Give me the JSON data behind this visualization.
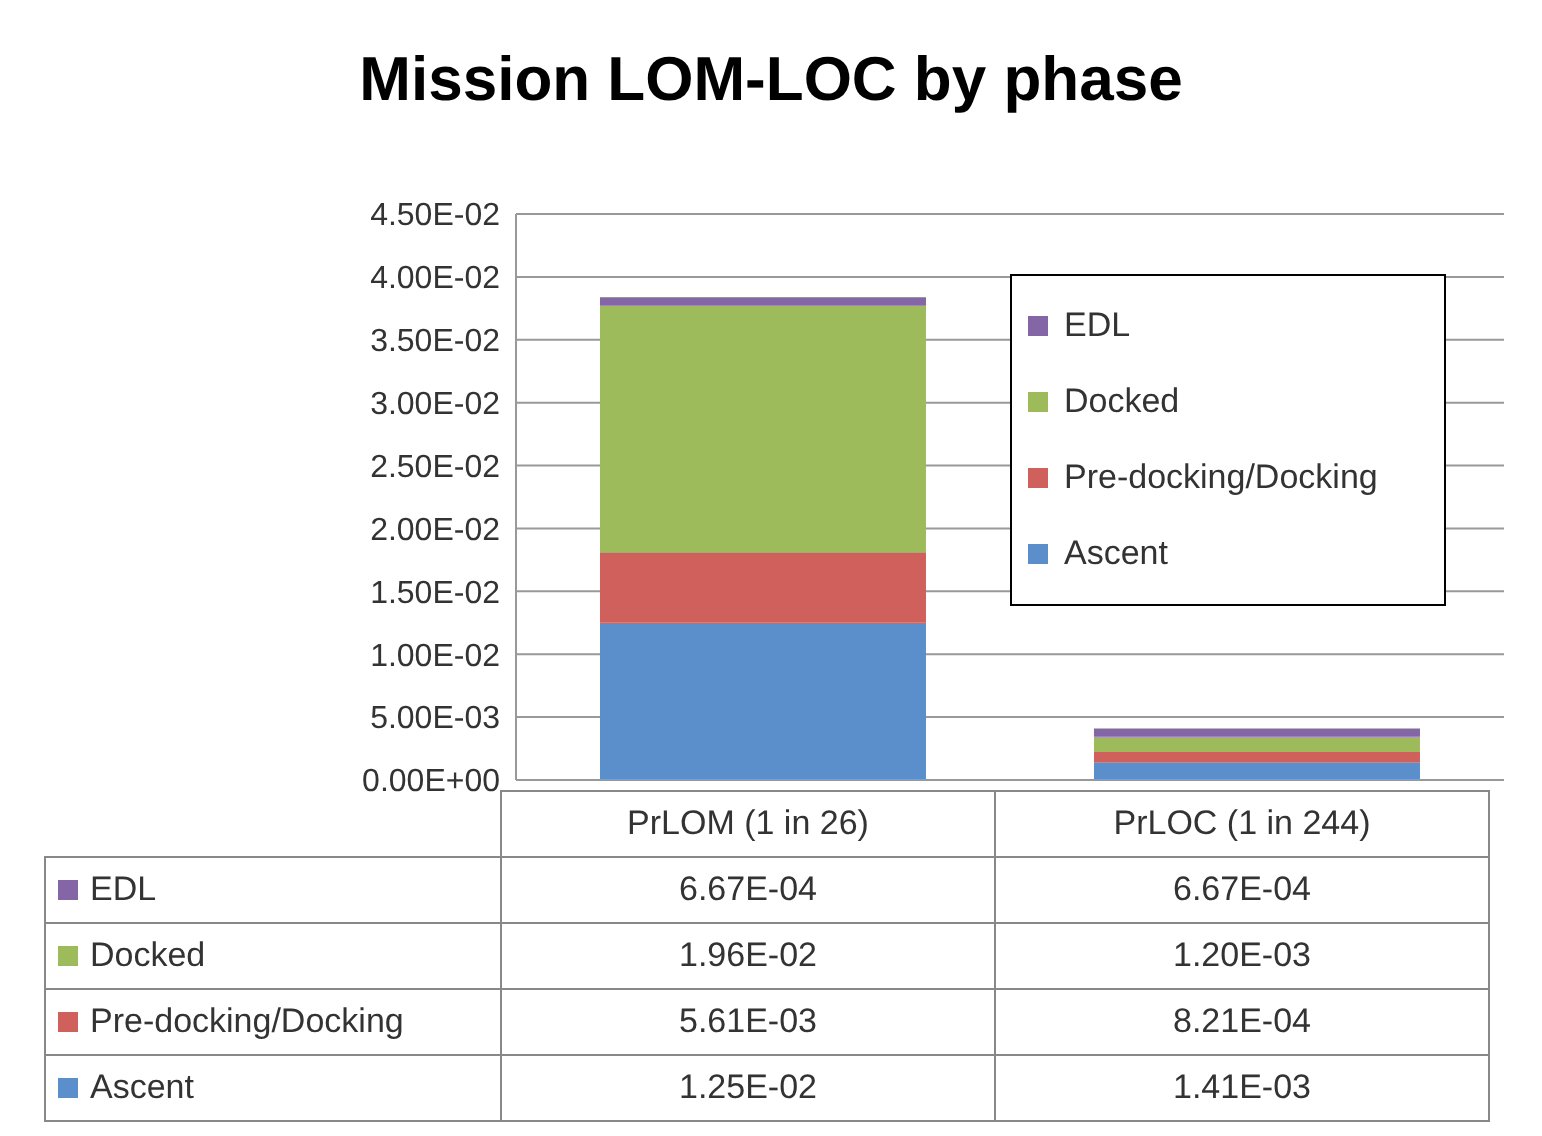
{
  "chart_data": {
    "type": "bar",
    "title": "Mission LOM-LOC by phase",
    "categories": [
      "PrLOM (1 in 26)",
      "PrLOC (1 in 244)"
    ],
    "stacked": true,
    "series": [
      {
        "name": "Ascent",
        "color": "#5b8fcb",
        "values": [
          0.0125,
          0.00141
        ],
        "value_labels": [
          "1.25E-02",
          "1.41E-03"
        ]
      },
      {
        "name": "Pre-docking/Docking",
        "color": "#cf605c",
        "values": [
          0.00561,
          0.000821
        ],
        "value_labels": [
          "5.61E-03",
          "8.21E-04"
        ]
      },
      {
        "name": "Docked",
        "color": "#9dbb5b",
        "values": [
          0.0196,
          0.0012
        ],
        "value_labels": [
          "1.96E-02",
          "1.20E-03"
        ]
      },
      {
        "name": "EDL",
        "color": "#8466a6",
        "values": [
          0.000667,
          0.000667
        ],
        "value_labels": [
          "6.67E-04",
          "6.67E-04"
        ]
      }
    ],
    "ylim": [
      0,
      0.045
    ],
    "yticks": [
      {
        "value": 0,
        "label": "0.00E+00"
      },
      {
        "value": 0.005,
        "label": "5.00E-03"
      },
      {
        "value": 0.01,
        "label": "1.00E-02"
      },
      {
        "value": 0.015,
        "label": "1.50E-02"
      },
      {
        "value": 0.02,
        "label": "2.00E-02"
      },
      {
        "value": 0.025,
        "label": "2.50E-02"
      },
      {
        "value": 0.03,
        "label": "3.00E-02"
      },
      {
        "value": 0.035,
        "label": "3.50E-02"
      },
      {
        "value": 0.04,
        "label": "4.00E-02"
      },
      {
        "value": 0.045,
        "label": "4.50E-02"
      }
    ],
    "grid": "y",
    "legend": "top right"
  }
}
